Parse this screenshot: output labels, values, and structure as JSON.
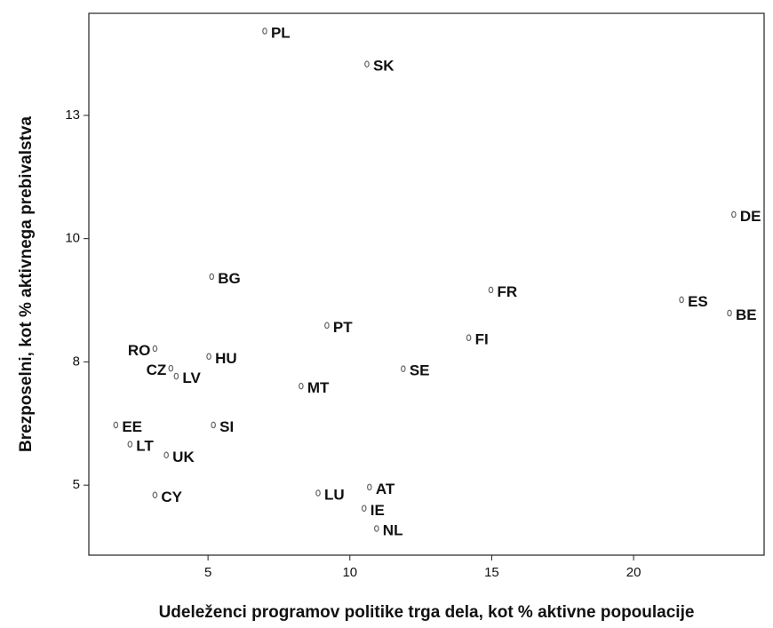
{
  "chart_data": {
    "type": "scatter",
    "x_label": "Udeleženci programov politike trga dela, kot % aktivne popoulacije",
    "y_label": "Brezposelni, kot % aktivnega prebivalstva",
    "labels": [
      "PL",
      "SK",
      "DE",
      "BG",
      "FR",
      "ES",
      "BE",
      "PT",
      "RO",
      "FI",
      "HU",
      "CZ",
      "LV",
      "SE",
      "MT",
      "EE",
      "SI",
      "LT",
      "UK",
      "AT",
      "LU",
      "CY",
      "IE",
      "NL"
    ],
    "x": [
      7.0,
      10.6,
      23.53,
      5.13,
      14.97,
      21.69,
      23.38,
      9.19,
      3.13,
      14.19,
      5.03,
      3.69,
      3.88,
      11.88,
      8.28,
      1.75,
      5.19,
      2.25,
      3.53,
      10.69,
      8.88,
      3.13,
      10.5,
      10.94
    ],
    "y": [
      14.21,
      13.54,
      10.49,
      9.23,
      8.96,
      8.76,
      8.49,
      8.24,
      7.77,
      7.99,
      7.61,
      7.37,
      7.21,
      7.36,
      7.01,
      6.22,
      6.22,
      5.83,
      5.61,
      4.96,
      4.84,
      4.8,
      4.53,
      4.12
    ],
    "color": "#666666",
    "xlim": [
      0.8,
      24.6
    ],
    "ylim": [
      3.58,
      14.57
    ],
    "xticks": [
      5,
      10,
      15,
      20
    ],
    "yticks": [
      {
        "value": 5,
        "label": "5"
      },
      {
        "value": 7.5,
        "label": "8"
      },
      {
        "value": 10,
        "label": "10"
      },
      {
        "value": 12.5,
        "label": "13"
      }
    ]
  }
}
